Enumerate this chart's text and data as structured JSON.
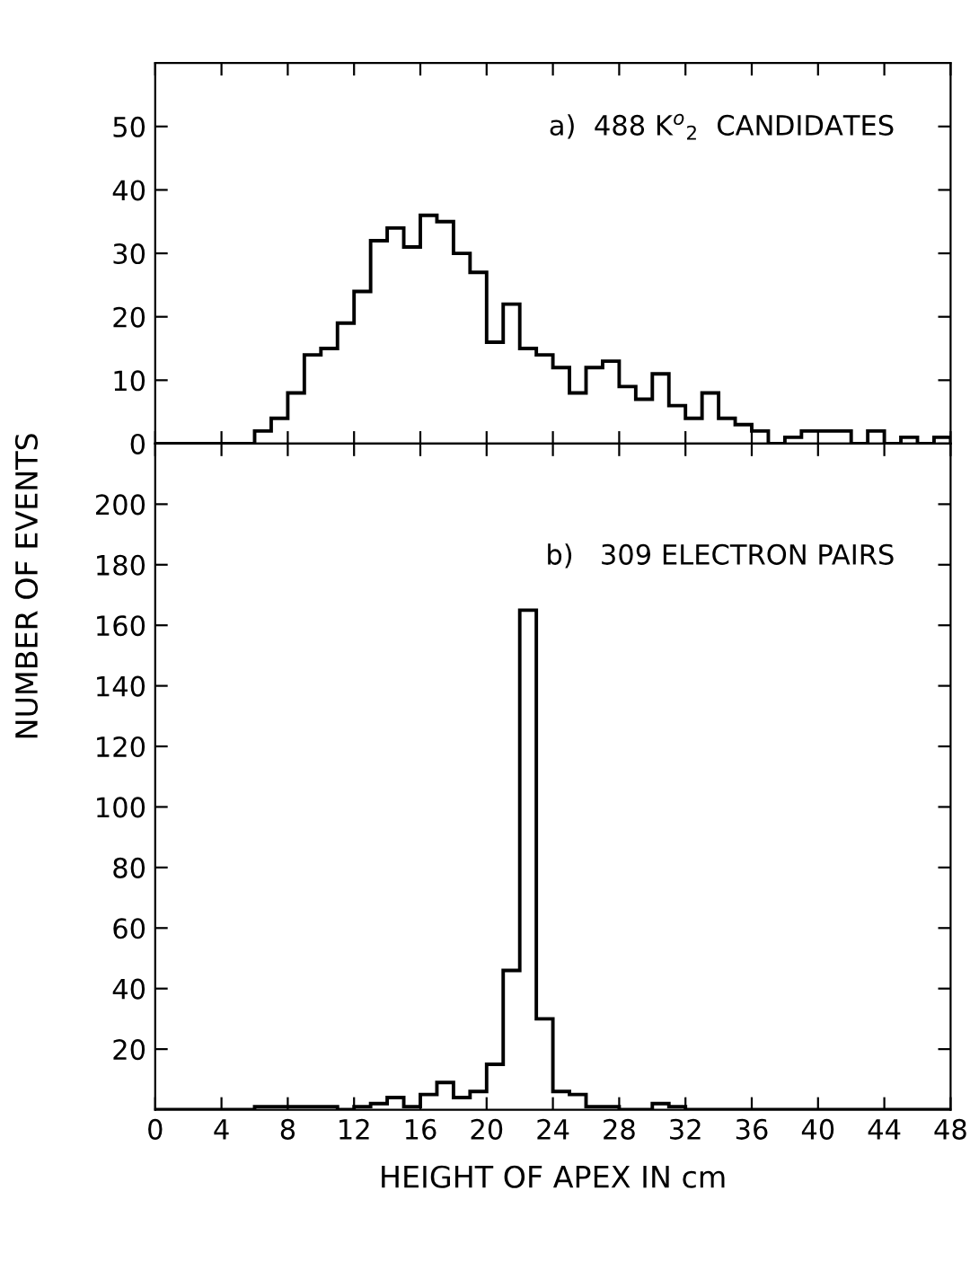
{
  "chart_data": [
    {
      "type": "histogram",
      "ylabel": "NUMBER OF EVENTS",
      "annotations": [
        "a)  488 K$^{o}$$_{2}$  CANDIDATES"
      ],
      "bins": [
        0,
        1,
        2,
        3,
        4,
        5,
        6,
        7,
        8,
        9,
        10,
        11,
        12,
        13,
        14,
        15,
        16,
        17,
        18,
        19,
        20,
        21,
        22,
        23,
        24,
        25,
        26,
        27,
        28,
        29,
        30,
        31,
        32,
        33,
        34,
        35,
        36,
        37,
        38,
        39,
        40,
        41,
        42,
        43,
        44,
        45,
        46,
        47,
        48
      ],
      "values": [
        0,
        0,
        0,
        0,
        0,
        0,
        2,
        4,
        8,
        14,
        15,
        19,
        24,
        32,
        34,
        31,
        36,
        35,
        30,
        27,
        16,
        22,
        15,
        14,
        12,
        8,
        12,
        13,
        9,
        7,
        11,
        6,
        4,
        8,
        4,
        3,
        2,
        0,
        1,
        2,
        2,
        2,
        0,
        2,
        0,
        1,
        0,
        1
      ],
      "color": "#000000",
      "xlim": [
        0,
        48
      ],
      "xticks": [
        0,
        4,
        8,
        12,
        16,
        20,
        24,
        28,
        32,
        36,
        40,
        44,
        48
      ],
      "ylim": [
        0,
        60
      ],
      "yticks": [
        0,
        10,
        20,
        30,
        40,
        50
      ],
      "tick_labels": "y",
      "grid": false
    },
    {
      "type": "histogram",
      "xlabel": "HEIGHT OF APEX IN cm",
      "annotations": [
        "b)   309 ELECTRON PAIRS"
      ],
      "bins": [
        0,
        1,
        2,
        3,
        4,
        5,
        6,
        7,
        8,
        9,
        10,
        11,
        12,
        13,
        14,
        15,
        16,
        17,
        18,
        19,
        20,
        21,
        22,
        23,
        24,
        25,
        26,
        27,
        28,
        29,
        30,
        31,
        32,
        33,
        34,
        35,
        36,
        37,
        38,
        39,
        40,
        41,
        42,
        43,
        44,
        45,
        46,
        47,
        48
      ],
      "values": [
        0,
        0,
        0,
        0,
        0,
        0,
        1,
        1,
        1,
        1,
        1,
        0,
        1,
        2,
        4,
        1,
        5,
        9,
        4,
        6,
        15,
        46,
        165,
        30,
        6,
        5,
        1,
        1,
        0,
        0,
        2,
        1,
        0,
        0,
        0,
        0,
        0,
        0,
        0,
        0,
        0,
        0,
        0,
        0,
        0,
        0,
        0,
        0
      ],
      "color": "#000000",
      "xlim": [
        0,
        48
      ],
      "xticks": [
        0,
        4,
        8,
        12,
        16,
        20,
        24,
        28,
        32,
        36,
        40,
        44,
        48
      ],
      "ylim": [
        0,
        220
      ],
      "yticks": [
        20,
        40,
        60,
        80,
        100,
        120,
        140,
        160,
        180,
        200
      ],
      "grid": false
    }
  ]
}
